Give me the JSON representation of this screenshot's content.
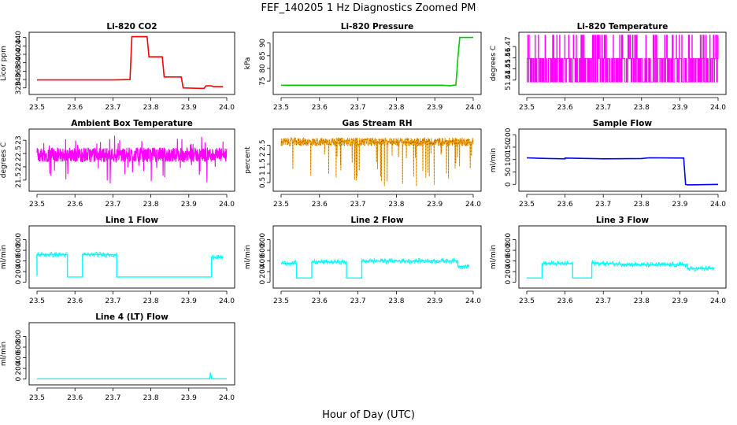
{
  "figure": {
    "title": "FEF_140205  1 Hz Diagnostics Zoomed PM",
    "xlabel": "Hour of Day (UTC)"
  },
  "chart_data": [
    {
      "type": "line",
      "title": "Li-820 CO2",
      "ylabel": "Licor ppm",
      "color": "#ff0000",
      "xlim": [
        23.5,
        24.0
      ],
      "ylim": [
        312,
        445
      ],
      "xticks": [
        "23.5",
        "23.6",
        "23.7",
        "23.8",
        "23.9",
        "24.0"
      ],
      "yticks": [
        320,
        340,
        360,
        380,
        400,
        420,
        440
      ],
      "series": [
        {
          "x": [
            23.5,
            23.6,
            23.7,
            23.745,
            23.75,
            23.79,
            23.795,
            23.83,
            23.835,
            23.88,
            23.885,
            23.93,
            23.94,
            23.945,
            23.96,
            23.965,
            23.99
          ],
          "y": [
            339,
            339,
            339,
            340,
            442,
            442,
            394,
            394,
            346,
            346,
            320,
            319,
            319,
            325,
            325,
            323,
            323
          ]
        }
      ]
    },
    {
      "type": "line",
      "title": "Li-820 Pressure",
      "ylabel": "kPa",
      "color": "#00cc00",
      "xlim": [
        23.5,
        24.0
      ],
      "ylim": [
        71,
        93
      ],
      "xticks": [
        "23.5",
        "23.6",
        "23.7",
        "23.8",
        "23.9",
        "24.0"
      ],
      "yticks": [
        75,
        80,
        85,
        90
      ],
      "series": [
        {
          "x": [
            23.5,
            23.92,
            23.94,
            23.955,
            23.96,
            23.965,
            24.0
          ],
          "y": [
            73.4,
            73.4,
            73.2,
            73.5,
            84,
            92.2,
            92.2
          ]
        }
      ]
    },
    {
      "type": "line",
      "title": "Li-820 Temperature",
      "ylabel": "degrees C",
      "color": "#ff00ff",
      "xlim": [
        23.5,
        24.0
      ],
      "ylim": [
        51.43,
        51.48
      ],
      "xticks": [
        "23.5",
        "23.6",
        "23.7",
        "23.8",
        "23.9",
        "24.0"
      ],
      "yticks": [
        51.44,
        51.45,
        51.46,
        51.47
      ],
      "levels": [
        51.4384,
        51.4593,
        51.4802
      ],
      "series": [
        {
          "x": [
            23.5,
            24.0
          ],
          "y": [
            51.4384,
            51.4593
          ]
        }
      ]
    },
    {
      "type": "line",
      "title": "Ambient Box Temperature",
      "ylabel": "degrees C",
      "color": "#ff00ff",
      "xlim": [
        23.5,
        24.0
      ],
      "ylim": [
        21.2,
        23.3
      ],
      "xticks": [
        "23.5",
        "23.6",
        "23.7",
        "23.8",
        "23.9",
        "24.0"
      ],
      "yticks": [
        21.5,
        22.0,
        22.5,
        23.0
      ],
      "series": [
        {
          "x": [
            23.5,
            24.0
          ],
          "y": [
            22.45,
            22.45
          ]
        }
      ]
    },
    {
      "type": "line",
      "title": "Gas Stream RH",
      "ylabel": "percent",
      "color": "#ffa500",
      "xlim": [
        23.5,
        24.0
      ],
      "ylim": [
        0.2,
        3.2
      ],
      "xticks": [
        "23.5",
        "23.6",
        "23.7",
        "23.8",
        "23.9",
        "24.0"
      ],
      "yticks": [
        0.5,
        1.0,
        1.5,
        2.0,
        2.5
      ],
      "series": [
        {
          "x": [
            23.5,
            24.0
          ],
          "y": [
            2.6,
            2.7
          ]
        }
      ]
    },
    {
      "type": "line",
      "title": "Sample Flow",
      "ylabel": "ml/min",
      "color": "#0000ff",
      "xlim": [
        23.5,
        24.0
      ],
      "ylim": [
        -15,
        210
      ],
      "xticks": [
        "23.5",
        "23.6",
        "23.7",
        "23.8",
        "23.9",
        "24.0"
      ],
      "yticks": [
        0,
        50,
        100,
        150,
        200
      ],
      "series": [
        {
          "x": [
            23.5,
            23.53,
            23.56,
            23.6,
            23.6,
            23.7,
            23.8,
            23.82,
            23.91,
            23.915,
            23.92,
            24.0
          ],
          "y": [
            107,
            105,
            104,
            103,
            106,
            103,
            104,
            107,
            106,
            0,
            -2,
            0
          ]
        }
      ]
    },
    {
      "type": "line",
      "title": "Line 1 Flow",
      "ylabel": "ml/min",
      "color": "#00ffff",
      "xlim": [
        23.5,
        24.0
      ],
      "ylim": [
        -50,
        1000
      ],
      "xticks": [
        "23.5",
        "23.6",
        "23.7",
        "23.8",
        "23.9",
        "24.0"
      ],
      "yticks": [
        0,
        200,
        400,
        600,
        800
      ],
      "series": [
        {
          "x": [
            23.5,
            23.5,
            23.58,
            23.58,
            23.62,
            23.62,
            23.71,
            23.71,
            23.96,
            23.96,
            23.99
          ],
          "y": [
            120,
            520,
            520,
            100,
            100,
            520,
            520,
            100,
            100,
            470,
            470
          ]
        }
      ]
    },
    {
      "type": "line",
      "title": "Line 2 Flow",
      "ylabel": "ml/min",
      "color": "#00ffff",
      "xlim": [
        23.5,
        24.0
      ],
      "ylim": [
        -50,
        1000
      ],
      "xticks": [
        "23.5",
        "23.6",
        "23.7",
        "23.8",
        "23.9",
        "24.0"
      ],
      "yticks": [
        0,
        200,
        400,
        600,
        800
      ],
      "series": [
        {
          "x": [
            23.5,
            23.54,
            23.54,
            23.58,
            23.58,
            23.67,
            23.67,
            23.71,
            23.71,
            23.96,
            23.96,
            23.99
          ],
          "y": [
            360,
            360,
            80,
            80,
            380,
            380,
            80,
            80,
            400,
            400,
            300,
            300
          ]
        }
      ]
    },
    {
      "type": "line",
      "title": "Line 3 Flow",
      "ylabel": "ml/min",
      "color": "#00ffff",
      "xlim": [
        23.5,
        24.0
      ],
      "ylim": [
        -50,
        1000
      ],
      "xticks": [
        "23.5",
        "23.6",
        "23.7",
        "23.8",
        "23.9",
        "24.0"
      ],
      "yticks": [
        0,
        200,
        400,
        600,
        800
      ],
      "series": [
        {
          "x": [
            23.5,
            23.54,
            23.54,
            23.62,
            23.62,
            23.67,
            23.67,
            23.8,
            23.92,
            23.92,
            23.99
          ],
          "y": [
            80,
            80,
            350,
            350,
            80,
            80,
            360,
            330,
            330,
            250,
            260
          ]
        }
      ]
    },
    {
      "type": "line",
      "title": "Line 4 (LT) Flow",
      "ylabel": "ml/min",
      "color": "#00ffff",
      "xlim": [
        23.5,
        24.0
      ],
      "ylim": [
        -50,
        1000
      ],
      "xticks": [
        "23.5",
        "23.6",
        "23.7",
        "23.8",
        "23.9",
        "24.0"
      ],
      "yticks": [
        0,
        200,
        400,
        600,
        800
      ],
      "series": [
        {
          "x": [
            23.5,
            23.955,
            23.957,
            23.96,
            24.0
          ],
          "y": [
            5,
            5,
            120,
            5,
            5
          ]
        }
      ]
    }
  ]
}
